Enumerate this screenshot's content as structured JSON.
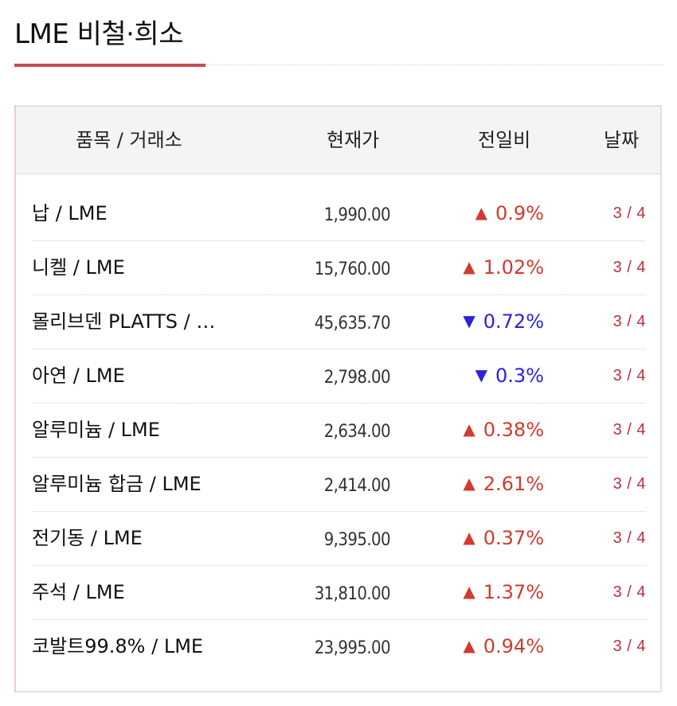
{
  "header": {
    "title": "LME 비철·희소"
  },
  "colors": {
    "accent": "#c94a4a",
    "up": "#d23a2e",
    "down": "#2b22e0",
    "date": "#b5343e"
  },
  "table": {
    "columns": [
      "품목 / 거래소",
      "현재가",
      "전일비",
      "날짜"
    ],
    "rows": [
      {
        "name": "납 / LME",
        "price": "1,990.00",
        "direction": "up",
        "arrow": "▲",
        "change": "0.9%",
        "date": "3 / 4"
      },
      {
        "name": "니켈 / LME",
        "price": "15,760.00",
        "direction": "up",
        "arrow": "▲",
        "change": "1.02%",
        "date": "3 / 4"
      },
      {
        "name": "몰리브덴 PLATTS / …",
        "price": "45,635.70",
        "direction": "down",
        "arrow": "▼",
        "change": "0.72%",
        "date": "3 / 4"
      },
      {
        "name": "아연 / LME",
        "price": "2,798.00",
        "direction": "down",
        "arrow": "▼",
        "change": "0.3%",
        "date": "3 / 4"
      },
      {
        "name": "알루미늄 / LME",
        "price": "2,634.00",
        "direction": "up",
        "arrow": "▲",
        "change": "0.38%",
        "date": "3 / 4"
      },
      {
        "name": "알루미늄 합금 / LME",
        "price": "2,414.00",
        "direction": "up",
        "arrow": "▲",
        "change": "2.61%",
        "date": "3 / 4"
      },
      {
        "name": "전기동 / LME",
        "price": "9,395.00",
        "direction": "up",
        "arrow": "▲",
        "change": "0.37%",
        "date": "3 / 4"
      },
      {
        "name": "주석 / LME",
        "price": "31,810.00",
        "direction": "up",
        "arrow": "▲",
        "change": "1.37%",
        "date": "3 / 4"
      },
      {
        "name": "코발트99.8% / LME",
        "price": "23,995.00",
        "direction": "up",
        "arrow": "▲",
        "change": "0.94%",
        "date": "3 / 4"
      }
    ]
  }
}
